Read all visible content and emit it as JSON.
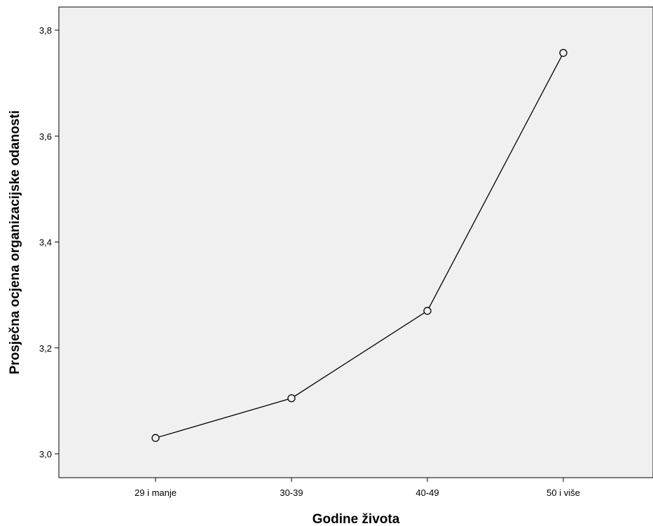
{
  "chart_data": {
    "type": "line",
    "categories": [
      "29 i manje",
      "30-39",
      "40-49",
      "50 i više"
    ],
    "series": [
      {
        "values": [
          3.03,
          3.105,
          3.27,
          3.757
        ]
      }
    ],
    "xlabel": "Godine života",
    "ylabel": "Prosječna ocjena organizacijske odanosti",
    "ylim": [
      2.96,
      3.85
    ],
    "yticks": [
      "3,0",
      "3,2",
      "3,4",
      "3,6",
      "3,8"
    ],
    "ytick_values": [
      3.0,
      3.2,
      3.4,
      3.6,
      3.8
    ],
    "grid": false,
    "markers": "open-circle",
    "colors": {
      "plot_bg": "#f0f0f0",
      "line": "#000000",
      "axis": "#000000"
    }
  }
}
